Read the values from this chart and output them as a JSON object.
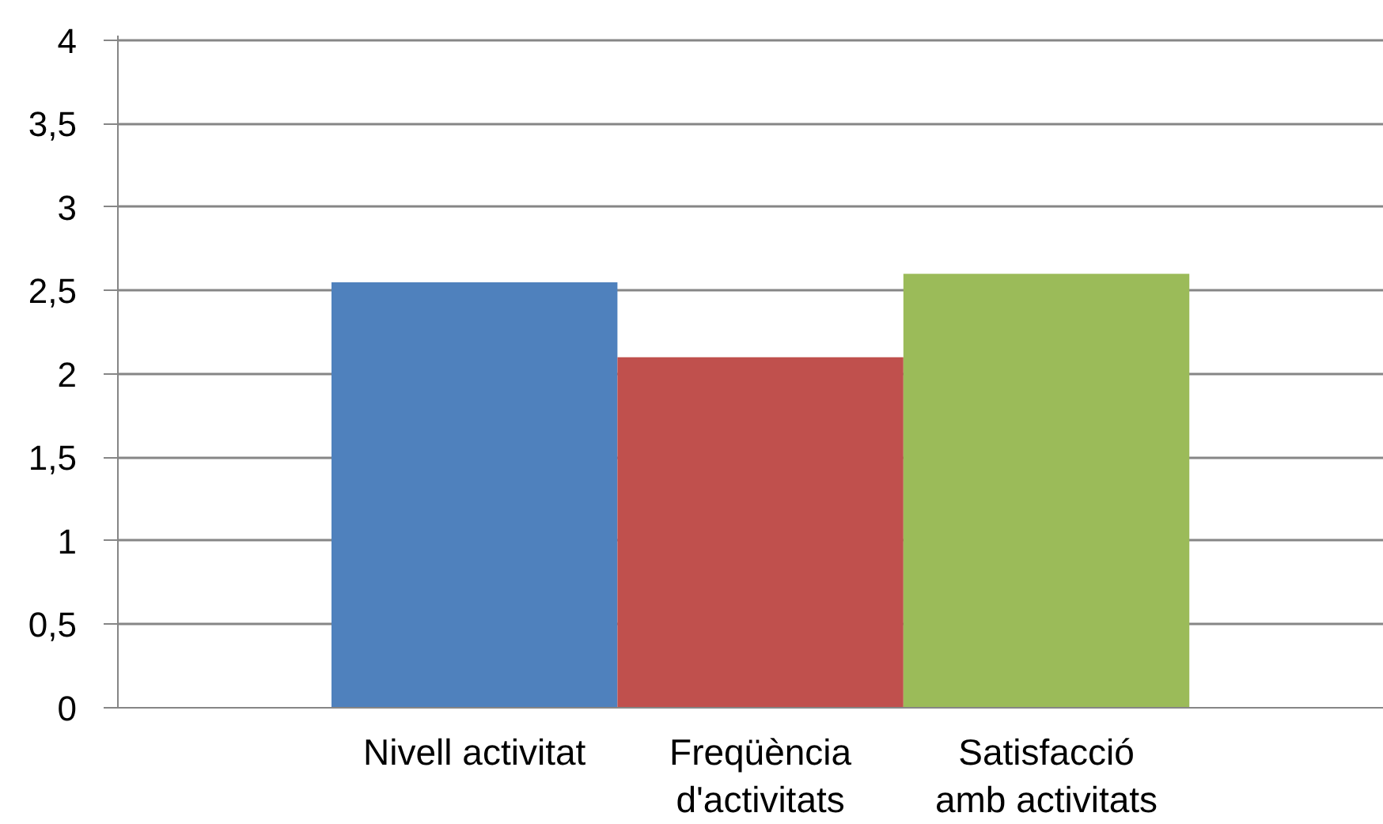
{
  "chart_data": {
    "type": "bar",
    "categories": [
      "Nivell activitat",
      "Freqüència\nd'activitats",
      "Satisfacció\namb activitats"
    ],
    "values": [
      2.55,
      2.1,
      2.6
    ],
    "colors": [
      "#4f81bd",
      "#c0504d",
      "#9bbb59"
    ],
    "ylim": [
      0,
      4
    ],
    "yticks": [
      0,
      {
        "value": 0.5,
        "label": "0,5"
      },
      1,
      {
        "value": 1.5,
        "label": "1,5"
      },
      2,
      {
        "value": 2.5,
        "label": "2,5"
      },
      3,
      {
        "value": 3.5,
        "label": "3,5"
      },
      4
    ],
    "grid": "y"
  }
}
